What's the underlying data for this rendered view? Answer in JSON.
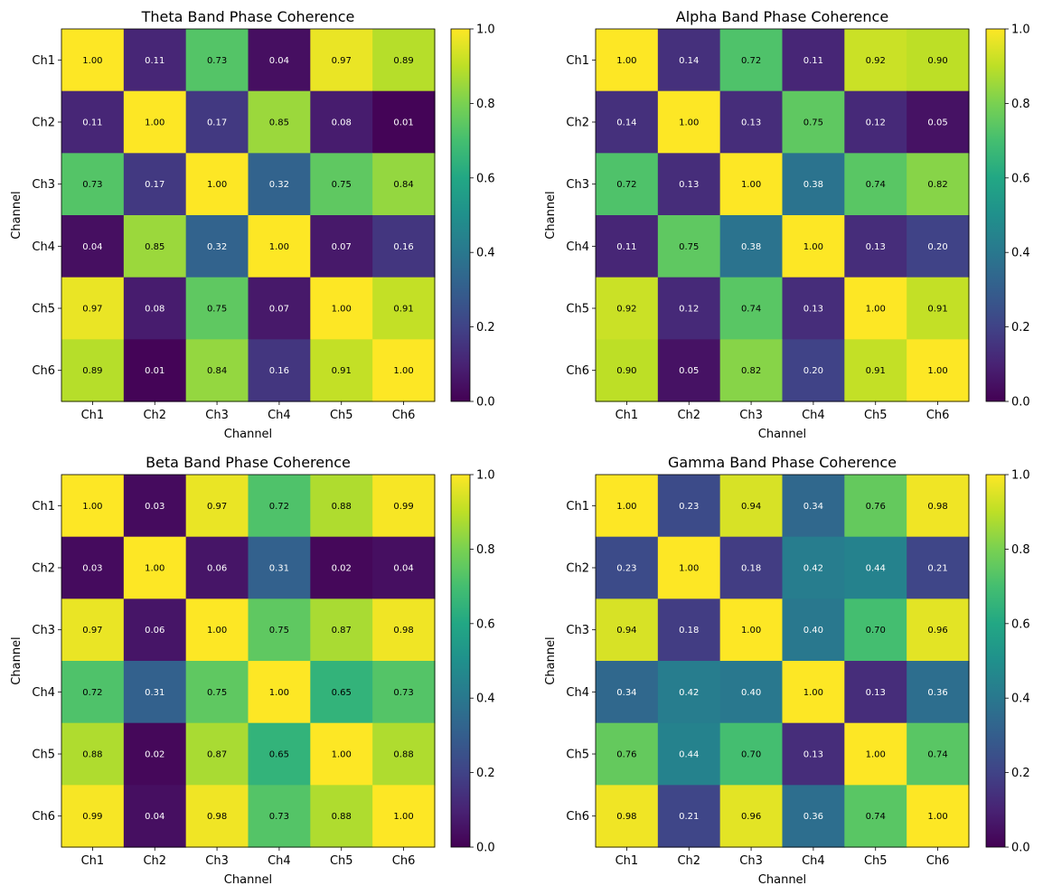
{
  "chart_data": [
    {
      "type": "heatmap",
      "title": "Theta Band Phase Coherence",
      "xlabel": "Channel",
      "ylabel": "Channel",
      "x_categories": [
        "Ch1",
        "Ch2",
        "Ch3",
        "Ch4",
        "Ch5",
        "Ch6"
      ],
      "y_categories": [
        "Ch1",
        "Ch2",
        "Ch3",
        "Ch4",
        "Ch5",
        "Ch6"
      ],
      "values": [
        [
          1.0,
          0.11,
          0.73,
          0.04,
          0.97,
          0.89
        ],
        [
          0.11,
          1.0,
          0.17,
          0.85,
          0.08,
          0.01
        ],
        [
          0.73,
          0.17,
          1.0,
          0.32,
          0.75,
          0.84
        ],
        [
          0.04,
          0.85,
          0.32,
          1.0,
          0.07,
          0.16
        ],
        [
          0.97,
          0.08,
          0.75,
          0.07,
          1.0,
          0.91
        ],
        [
          0.89,
          0.01,
          0.84,
          0.16,
          0.91,
          1.0
        ]
      ],
      "value_labels": [
        [
          "1.00",
          "0.11",
          "0.73",
          "0.04",
          "0.97",
          "0.89"
        ],
        [
          "0.11",
          "1.00",
          "0.17",
          "0.85",
          "0.08",
          "0.01"
        ],
        [
          "0.73",
          "0.17",
          "1.00",
          "0.32",
          "0.75",
          "0.84"
        ],
        [
          "0.04",
          "0.85",
          "0.32",
          "1.00",
          "0.07",
          "0.16"
        ],
        [
          "0.97",
          "0.08",
          "0.75",
          "0.07",
          "1.00",
          "0.91"
        ],
        [
          "0.89",
          "0.01",
          "0.84",
          "0.16",
          "0.91",
          "1.00"
        ]
      ],
      "colormap": "viridis",
      "vmin": 0,
      "vmax": 1,
      "colorbar_ticks": [
        "0.0",
        "0.2",
        "0.4",
        "0.6",
        "0.8",
        "1.0"
      ]
    },
    {
      "type": "heatmap",
      "title": "Alpha Band Phase Coherence",
      "xlabel": "Channel",
      "ylabel": "Channel",
      "x_categories": [
        "Ch1",
        "Ch2",
        "Ch3",
        "Ch4",
        "Ch5",
        "Ch6"
      ],
      "y_categories": [
        "Ch1",
        "Ch2",
        "Ch3",
        "Ch4",
        "Ch5",
        "Ch6"
      ],
      "values": [
        [
          1.0,
          0.14,
          0.72,
          0.11,
          0.92,
          0.9
        ],
        [
          0.14,
          1.0,
          0.13,
          0.75,
          0.12,
          0.05
        ],
        [
          0.72,
          0.13,
          1.0,
          0.38,
          0.74,
          0.82
        ],
        [
          0.11,
          0.75,
          0.38,
          1.0,
          0.13,
          0.2
        ],
        [
          0.92,
          0.12,
          0.74,
          0.13,
          1.0,
          0.91
        ],
        [
          0.9,
          0.05,
          0.82,
          0.2,
          0.91,
          1.0
        ]
      ],
      "value_labels": [
        [
          "1.00",
          "0.14",
          "0.72",
          "0.11",
          "0.92",
          "0.90"
        ],
        [
          "0.14",
          "1.00",
          "0.13",
          "0.75",
          "0.12",
          "0.05"
        ],
        [
          "0.72",
          "0.13",
          "1.00",
          "0.38",
          "0.74",
          "0.82"
        ],
        [
          "0.11",
          "0.75",
          "0.38",
          "1.00",
          "0.13",
          "0.20"
        ],
        [
          "0.92",
          "0.12",
          "0.74",
          "0.13",
          "1.00",
          "0.91"
        ],
        [
          "0.90",
          "0.05",
          "0.82",
          "0.20",
          "0.91",
          "1.00"
        ]
      ],
      "colormap": "viridis",
      "vmin": 0,
      "vmax": 1,
      "colorbar_ticks": [
        "0.0",
        "0.2",
        "0.4",
        "0.6",
        "0.8",
        "1.0"
      ]
    },
    {
      "type": "heatmap",
      "title": "Beta Band Phase Coherence",
      "xlabel": "Channel",
      "ylabel": "Channel",
      "x_categories": [
        "Ch1",
        "Ch2",
        "Ch3",
        "Ch4",
        "Ch5",
        "Ch6"
      ],
      "y_categories": [
        "Ch1",
        "Ch2",
        "Ch3",
        "Ch4",
        "Ch5",
        "Ch6"
      ],
      "values": [
        [
          1.0,
          0.03,
          0.97,
          0.72,
          0.88,
          0.99
        ],
        [
          0.03,
          1.0,
          0.06,
          0.31,
          0.02,
          0.04
        ],
        [
          0.97,
          0.06,
          1.0,
          0.75,
          0.87,
          0.98
        ],
        [
          0.72,
          0.31,
          0.75,
          1.0,
          0.65,
          0.73
        ],
        [
          0.88,
          0.02,
          0.87,
          0.65,
          1.0,
          0.88
        ],
        [
          0.99,
          0.04,
          0.98,
          0.73,
          0.88,
          1.0
        ]
      ],
      "value_labels": [
        [
          "1.00",
          "0.03",
          "0.97",
          "0.72",
          "0.88",
          "0.99"
        ],
        [
          "0.03",
          "1.00",
          "0.06",
          "0.31",
          "0.02",
          "0.04"
        ],
        [
          "0.97",
          "0.06",
          "1.00",
          "0.75",
          "0.87",
          "0.98"
        ],
        [
          "0.72",
          "0.31",
          "0.75",
          "1.00",
          "0.65",
          "0.73"
        ],
        [
          "0.88",
          "0.02",
          "0.87",
          "0.65",
          "1.00",
          "0.88"
        ],
        [
          "0.99",
          "0.04",
          "0.98",
          "0.73",
          "0.88",
          "1.00"
        ]
      ],
      "colormap": "viridis",
      "vmin": 0,
      "vmax": 1,
      "colorbar_ticks": [
        "0.0",
        "0.2",
        "0.4",
        "0.6",
        "0.8",
        "1.0"
      ]
    },
    {
      "type": "heatmap",
      "title": "Gamma Band Phase Coherence",
      "xlabel": "Channel",
      "ylabel": "Channel",
      "x_categories": [
        "Ch1",
        "Ch2",
        "Ch3",
        "Ch4",
        "Ch5",
        "Ch6"
      ],
      "y_categories": [
        "Ch1",
        "Ch2",
        "Ch3",
        "Ch4",
        "Ch5",
        "Ch6"
      ],
      "values": [
        [
          1.0,
          0.23,
          0.94,
          0.34,
          0.76,
          0.98
        ],
        [
          0.23,
          1.0,
          0.18,
          0.42,
          0.44,
          0.21
        ],
        [
          0.94,
          0.18,
          1.0,
          0.4,
          0.7,
          0.96
        ],
        [
          0.34,
          0.42,
          0.4,
          1.0,
          0.13,
          0.36
        ],
        [
          0.76,
          0.44,
          0.7,
          0.13,
          1.0,
          0.74
        ],
        [
          0.98,
          0.21,
          0.96,
          0.36,
          0.74,
          1.0
        ]
      ],
      "value_labels": [
        [
          "1.00",
          "0.23",
          "0.94",
          "0.34",
          "0.76",
          "0.98"
        ],
        [
          "0.23",
          "1.00",
          "0.18",
          "0.42",
          "0.44",
          "0.21"
        ],
        [
          "0.94",
          "0.18",
          "1.00",
          "0.40",
          "0.70",
          "0.96"
        ],
        [
          "0.34",
          "0.42",
          "0.40",
          "1.00",
          "0.13",
          "0.36"
        ],
        [
          "0.76",
          "0.44",
          "0.70",
          "0.13",
          "1.00",
          "0.74"
        ],
        [
          "0.98",
          "0.21",
          "0.96",
          "0.36",
          "0.74",
          "1.00"
        ]
      ],
      "colormap": "viridis",
      "vmin": 0,
      "vmax": 1,
      "colorbar_ticks": [
        "0.0",
        "0.2",
        "0.4",
        "0.6",
        "0.8",
        "1.0"
      ]
    }
  ]
}
